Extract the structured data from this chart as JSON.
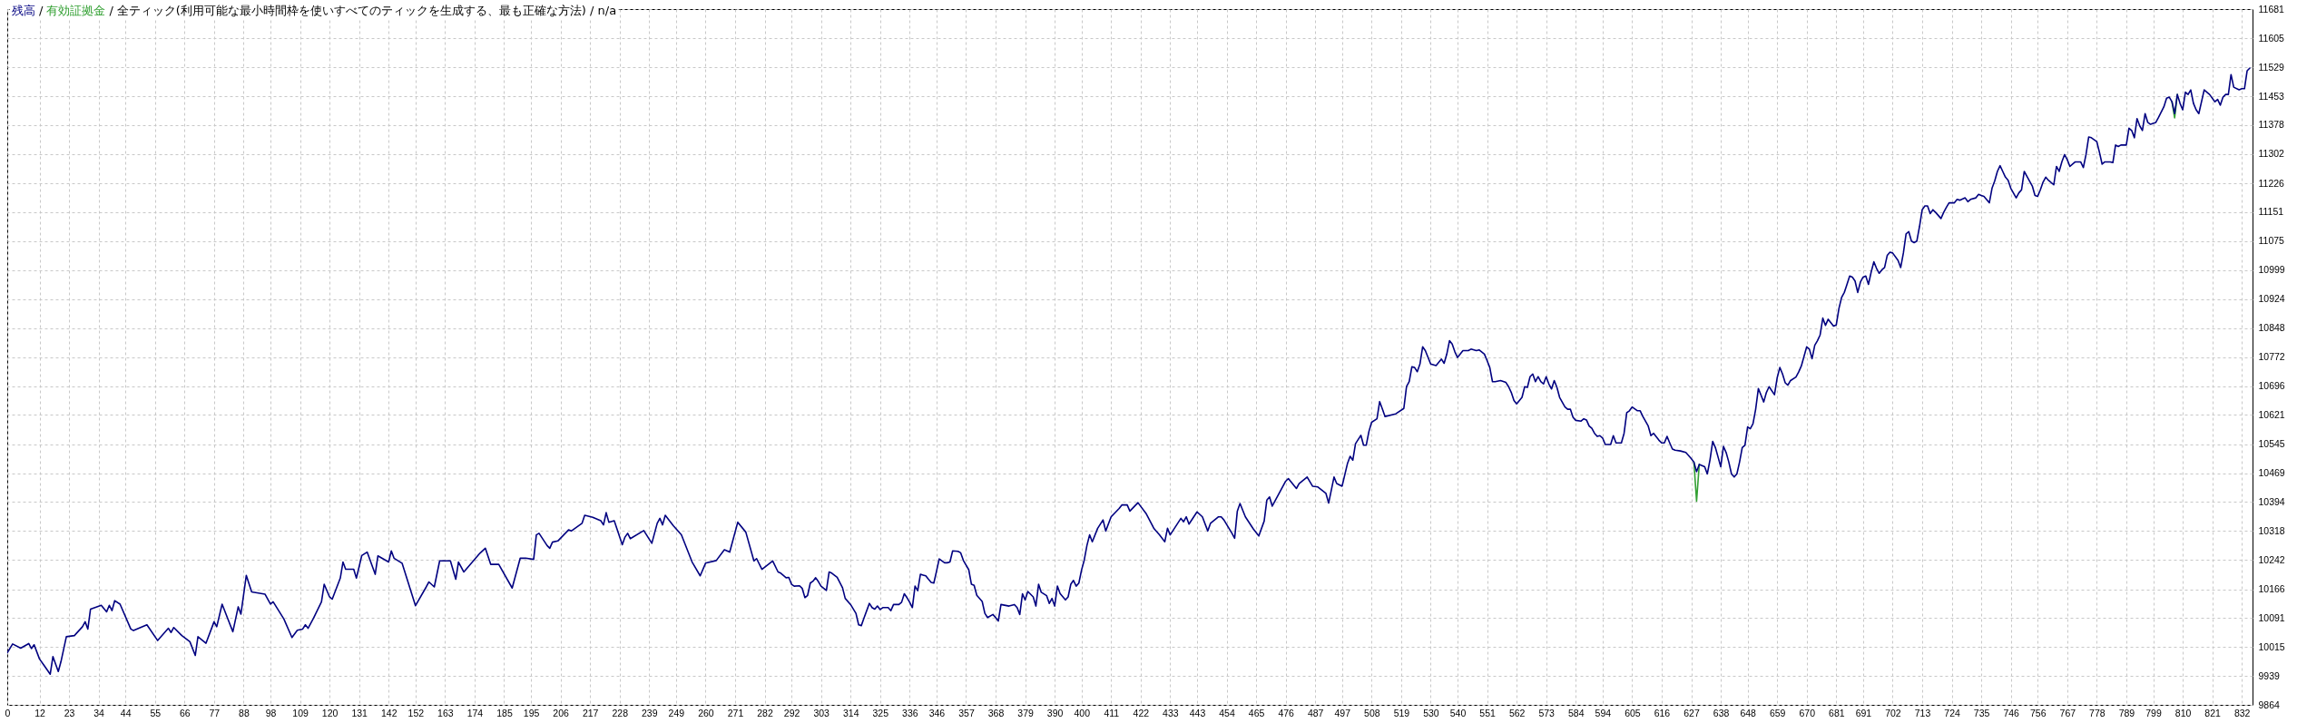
{
  "chart_data": {
    "type": "line",
    "title": "全ティック(利用可能な最小時間枠を使いすべてのティックを生成する、最も正確な方法) / n/a",
    "annotations": [
      "/",
      "/"
    ],
    "legend": "top left",
    "grid": true,
    "xlim": [
      0,
      836
    ],
    "xticks": [
      0,
      12,
      23,
      34,
      44,
      55,
      66,
      77,
      88,
      98,
      109,
      120,
      131,
      142,
      152,
      163,
      174,
      185,
      195,
      206,
      217,
      228,
      239,
      249,
      260,
      271,
      282,
      292,
      303,
      314,
      325,
      336,
      346,
      357,
      368,
      379,
      390,
      400,
      411,
      422,
      433,
      443,
      454,
      465,
      476,
      487,
      497,
      508,
      519,
      530,
      540,
      551,
      562,
      573,
      584,
      594,
      605,
      616,
      627,
      638,
      648,
      659,
      670,
      681,
      691,
      702,
      713,
      724,
      735,
      746,
      756,
      767,
      778,
      789,
      799,
      810,
      821,
      832
    ],
    "ylim": [
      9864,
      11681
    ],
    "yticks": [
      9864,
      9939,
      10015,
      10091,
      10166,
      10242,
      10318,
      10394,
      10469,
      10545,
      10621,
      10696,
      10772,
      10848,
      10924,
      10999,
      11075,
      11151,
      11226,
      11302,
      11378,
      11453,
      11529,
      11605,
      11681
    ],
    "series": [
      {
        "name": "残高",
        "color": "#000080",
        "x": [
          0,
          2,
          5,
          8,
          9,
          10,
          12,
          14,
          16,
          17,
          19,
          20,
          22,
          25,
          28,
          29,
          30,
          31,
          35,
          37,
          38,
          39,
          40,
          42,
          46,
          47,
          52,
          56,
          60,
          61,
          62,
          65,
          68,
          70,
          71,
          74,
          77,
          78,
          80,
          84,
          86,
          87,
          89,
          91,
          96,
          98,
          99,
          103,
          106,
          108,
          110,
          111,
          112,
          114,
          117,
          118,
          120,
          121,
          124,
          125,
          126,
          129,
          130,
          132,
          134,
          137,
          138,
          142,
          143,
          144,
          147,
          152,
          156,
          157,
          159,
          161,
          165,
          167,
          168,
          170,
          176,
          178,
          180,
          183,
          188,
          191,
          193,
          196,
          197,
          198,
          201,
          202,
          203,
          205,
          209,
          210,
          214,
          215,
          218,
          221,
          222,
          223,
          224,
          226,
          229,
          230,
          231,
          232,
          237,
          240,
          242,
          243,
          244,
          245,
          248,
          251,
          255,
          258,
          260,
          264,
          267,
          269,
          272,
          275,
          278,
          279,
          281,
          285,
          287,
          288,
          290,
          291,
          292,
          293,
          295,
          296,
          297,
          298,
          299,
          300,
          301,
          302,
          303,
          305,
          306,
          307,
          309,
          311,
          312,
          314,
          316,
          317,
          318,
          319,
          321,
          322,
          323,
          324,
          325,
          326,
          328,
          329,
          330,
          332,
          333,
          334,
          335,
          336,
          337,
          338,
          339,
          340,
          341,
          342,
          343,
          344,
          345,
          346,
          347,
          349,
          350,
          351,
          352,
          354,
          355,
          356,
          358,
          359,
          360,
          361,
          363,
          364,
          365,
          367,
          368,
          369,
          370,
          373,
          375,
          376,
          377,
          378,
          379,
          380,
          382,
          383,
          384,
          385,
          387,
          388,
          389,
          390,
          391,
          392,
          394,
          395,
          396,
          397,
          398,
          399,
          400,
          401,
          402,
          403,
          404,
          406,
          408,
          409,
          411,
          414,
          415,
          417,
          418,
          421,
          424,
          427,
          429,
          431,
          432,
          433,
          437,
          438,
          439,
          440,
          443,
          445,
          447,
          448,
          451,
          452,
          453,
          456,
          457,
          458,
          459,
          461,
          464,
          466,
          468,
          469,
          470,
          471,
          472,
          474,
          476,
          477,
          480,
          481,
          484,
          486,
          488,
          491,
          492,
          494,
          495,
          497,
          499,
          500,
          501,
          502,
          504,
          505,
          506,
          507,
          508,
          510,
          511,
          512,
          513,
          517,
          520,
          521,
          522,
          523,
          524,
          525,
          526,
          527,
          528,
          530,
          532,
          534,
          535,
          536,
          537,
          538,
          539,
          540,
          541,
          542,
          544,
          545,
          547,
          548,
          550,
          551,
          552,
          553,
          554,
          556,
          558,
          559,
          560,
          561,
          562,
          564,
          565,
          566,
          567,
          568,
          569,
          570,
          571,
          572,
          573,
          574,
          575,
          576,
          577,
          578,
          580,
          581,
          582,
          583,
          584,
          586,
          587,
          588,
          589,
          590,
          591,
          592,
          593,
          594,
          595,
          597,
          598,
          599,
          601,
          602,
          603,
          604,
          605,
          607,
          608,
          609,
          611,
          612,
          613,
          615,
          616,
          617,
          618,
          619,
          620,
          621,
          623,
          625,
          627,
          628,
          629,
          630,
          632,
          633,
          634,
          635,
          636,
          637,
          638,
          639,
          640,
          641,
          642,
          643,
          644,
          645,
          646,
          647,
          648,
          649,
          650,
          651,
          652,
          654,
          655,
          656,
          658,
          659,
          660,
          661,
          662,
          663,
          664,
          666,
          667,
          668,
          670,
          671,
          672,
          673,
          674,
          675,
          676,
          677,
          678,
          679,
          680,
          681,
          682,
          683,
          684,
          685,
          686,
          687,
          688,
          689,
          690,
          691,
          692,
          693,
          694,
          695,
          696,
          697,
          698,
          699,
          700,
          701,
          702,
          704,
          705,
          706,
          707,
          708,
          709,
          710,
          711,
          712,
          713,
          714,
          715,
          716,
          717,
          718,
          720,
          721,
          722,
          723,
          725,
          726,
          727,
          729,
          730,
          731,
          733,
          734,
          735,
          736,
          738,
          739,
          740,
          741,
          742,
          743,
          744,
          745,
          746,
          748,
          749,
          750,
          751,
          752,
          754,
          755,
          756,
          757,
          758,
          759,
          760,
          762,
          763,
          764,
          765,
          766,
          767,
          768,
          769,
          770,
          772,
          773,
          774,
          775,
          776,
          778,
          779,
          780,
          781,
          783,
          784,
          785,
          786,
          787,
          789,
          790,
          791,
          792,
          793,
          794,
          795,
          796,
          797,
          798,
          800,
          801,
          803,
          804,
          805,
          806,
          807,
          808,
          809,
          810,
          811,
          812,
          813,
          814,
          815,
          816,
          818,
          819,
          820,
          822,
          823,
          824,
          825,
          826,
          827,
          828,
          829,
          831,
          832,
          833,
          834,
          835
        ],
        "values": [
          10000,
          10023,
          10012,
          10024,
          10011,
          10021,
          9984,
          9964,
          9944,
          9990,
          9951,
          9977,
          10042,
          10045,
          10068,
          10081,
          10062,
          10114,
          10124,
          10107,
          10124,
          10110,
          10136,
          10127,
          10062,
          10058,
          10073,
          10032,
          10064,
          10053,
          10066,
          10045,
          10029,
          9993,
          10042,
          10025,
          10081,
          10068,
          10127,
          10055,
          10120,
          10101,
          10202,
          10159,
          10153,
          10127,
          10133,
          10088,
          10040,
          10059,
          10062,
          10073,
          10064,
          10090,
          10133,
          10179,
          10146,
          10140,
          10195,
          10237,
          10218,
          10218,
          10195,
          10254,
          10263,
          10205,
          10253,
          10237,
          10266,
          10247,
          10234,
          10123,
          10172,
          10185,
          10172,
          10240,
          10240,
          10192,
          10237,
          10211,
          10260,
          10273,
          10231,
          10231,
          10169,
          10247,
          10247,
          10244,
          10308,
          10312,
          10280,
          10273,
          10289,
          10292,
          10321,
          10318,
          10338,
          10359,
          10354,
          10345,
          10334,
          10366,
          10341,
          10345,
          10282,
          10302,
          10312,
          10298,
          10319,
          10286,
          10338,
          10351,
          10334,
          10359,
          10332,
          10308,
          10237,
          10201,
          10234,
          10241,
          10269,
          10263,
          10341,
          10315,
          10240,
          10246,
          10218,
          10240,
          10211,
          10208,
          10196,
          10197,
          10179,
          10174,
          10175,
          10168,
          10144,
          10150,
          10182,
          10187,
          10196,
          10186,
          10174,
          10163,
          10211,
          10208,
          10197,
          10170,
          10142,
          10126,
          10103,
          10073,
          10071,
          10091,
          10129,
          10118,
          10114,
          10122,
          10113,
          10118,
          10118,
          10110,
          10126,
          10126,
          10132,
          10154,
          10144,
          10132,
          10118,
          10174,
          10162,
          10205,
          10203,
          10201,
          10192,
          10184,
          10182,
          10213,
          10245,
          10235,
          10235,
          10237,
          10266,
          10265,
          10261,
          10241,
          10217,
          10179,
          10176,
          10150,
          10134,
          10103,
          10092,
          10100,
          10092,
          10083,
          10126,
          10122,
          10126,
          10118,
          10100,
          10154,
          10138,
          10160,
          10146,
          10122,
          10179,
          10158,
          10149,
          10129,
          10142,
          10122,
          10174,
          10155,
          10138,
          10146,
          10179,
          10189,
          10174,
          10182,
          10216,
          10242,
          10280,
          10308,
          10290,
          10325,
          10347,
          10318,
          10355,
          10377,
          10386,
          10386,
          10370,
          10392,
          10364,
          10324,
          10308,
          10290,
          10325,
          10308,
          10351,
          10342,
          10355,
          10336,
          10368,
          10355,
          10318,
          10338,
          10355,
          10355,
          10347,
          10312,
          10299,
          10370,
          10390,
          10355,
          10323,
          10305,
          10344,
          10399,
          10407,
          10383,
          10396,
          10422,
          10448,
          10455,
          10429,
          10442,
          10459,
          10435,
          10433,
          10416,
          10391,
          10459,
          10442,
          10435,
          10494,
          10513,
          10503,
          10546,
          10568,
          10542,
          10542,
          10578,
          10602,
          10611,
          10656,
          10637,
          10617,
          10624,
          10638,
          10695,
          10708,
          10747,
          10745,
          10734,
          10754,
          10799,
          10789,
          10754,
          10750,
          10767,
          10756,
          10780,
          10815,
          10806,
          10786,
          10771,
          10780,
          10789,
          10789,
          10793,
          10789,
          10791,
          10780,
          10763,
          10745,
          10708,
          10708,
          10711,
          10706,
          10695,
          10680,
          10659,
          10650,
          10667,
          10695,
          10693,
          10721,
          10728,
          10708,
          10721,
          10708,
          10702,
          10721,
          10702,
          10689,
          10711,
          10693,
          10667,
          10642,
          10636,
          10636,
          10615,
          10607,
          10605,
          10611,
          10608,
          10592,
          10586,
          10573,
          10565,
          10567,
          10561,
          10544,
          10544,
          10567,
          10548,
          10548,
          10573,
          10627,
          10632,
          10642,
          10632,
          10632,
          10617,
          10592,
          10567,
          10573,
          10555,
          10548,
          10548,
          10565,
          10548,
          10532,
          10529,
          10527,
          10523,
          10507,
          10498,
          10473,
          10492,
          10486,
          10467,
          10504,
          10552,
          10536,
          10511,
          10486,
          10539,
          10523,
          10498,
          10467,
          10459,
          10467,
          10498,
          10536,
          10542,
          10590,
          10585,
          10598,
          10636,
          10690,
          10655,
          10680,
          10695,
          10674,
          10718,
          10745,
          10728,
          10705,
          10699,
          10711,
          10720,
          10733,
          10749,
          10799,
          10793,
          10768,
          10803,
          10815,
          10830,
          10874,
          10855,
          10871,
          10862,
          10853,
          10856,
          10899,
          10928,
          10941,
          10962,
          10984,
          10981,
          10971,
          10941,
          10968,
          10981,
          10984,
          10962,
          10994,
          11021,
          11004,
          10991,
          11000,
          11006,
          11038,
          11046,
          11044,
          11025,
          11006,
          11044,
          11094,
          11100,
          11075,
          11071,
          11075,
          11113,
          11157,
          11167,
          11167,
          11147,
          11157,
          11150,
          11134,
          11150,
          11163,
          11175,
          11175,
          11184,
          11182,
          11188,
          11178,
          11184,
          11188,
          11197,
          11194,
          11192,
          11175,
          11213,
          11232,
          11257,
          11272,
          11257,
          11242,
          11234,
          11213,
          11188,
          11201,
          11209,
          11257,
          11244,
          11219,
          11194,
          11192,
          11209,
          11229,
          11242,
          11234,
          11222,
          11270,
          11257,
          11282,
          11301,
          11288,
          11270,
          11276,
          11282,
          11282,
          11267,
          11301,
          11347,
          11345,
          11335,
          11307,
          11276,
          11282,
          11282,
          11280,
          11326,
          11322,
          11326,
          11326,
          11370,
          11364,
          11345,
          11395,
          11376,
          11364,
          11408,
          11385,
          11380,
          11385,
          11398,
          11426,
          11448,
          11451,
          11439,
          11408,
          11458,
          11435,
          11418,
          11464,
          11458,
          11470,
          11435,
          11418,
          11408,
          11470,
          11464,
          11458,
          11439,
          11445,
          11430,
          11451,
          11458,
          11458,
          11510,
          11477,
          11470,
          11473,
          11473,
          11520,
          11527
        ]
      },
      {
        "name": "有効証拠金",
        "color": "#33a033",
        "x": [
          628,
          629,
          630,
          631,
          806,
          807,
          808
        ],
        "values": [
          10498,
          10396,
          10492,
          null,
          11439,
          11397,
          11458
        ]
      }
    ]
  }
}
